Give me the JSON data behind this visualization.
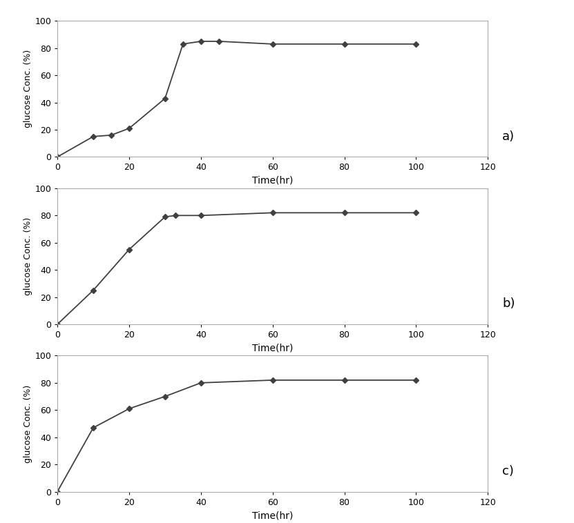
{
  "charts": [
    {
      "label": "a)",
      "x": [
        0,
        10,
        15,
        20,
        30,
        35,
        40,
        45,
        60,
        80,
        100
      ],
      "y": [
        0,
        15,
        16,
        21,
        43,
        83,
        85,
        85,
        83,
        83,
        83
      ]
    },
    {
      "label": "b)",
      "x": [
        0,
        10,
        20,
        30,
        33,
        40,
        60,
        80,
        100
      ],
      "y": [
        0,
        25,
        55,
        79,
        80,
        80,
        82,
        82,
        82
      ]
    },
    {
      "label": "c)",
      "x": [
        0,
        10,
        20,
        30,
        40,
        60,
        80,
        100
      ],
      "y": [
        0,
        47,
        61,
        70,
        80,
        82,
        82,
        82
      ]
    }
  ],
  "xlabel": "Time(hr)",
  "ylabel": "glucose Conc. (%)",
  "xlim": [
    0,
    120
  ],
  "ylim": [
    0,
    100
  ],
  "xticks": [
    0,
    20,
    40,
    60,
    80,
    100,
    120
  ],
  "yticks": [
    0,
    20,
    40,
    60,
    80,
    100
  ],
  "line_color": "#404040",
  "marker": "D",
  "marker_size": 4,
  "line_width": 1.3,
  "background_color": "#ffffff",
  "spine_color": "#aaaaaa",
  "label_fontsize": 10,
  "tick_fontsize": 9,
  "panel_label_fontsize": 13,
  "ylabel_fontsize": 9
}
